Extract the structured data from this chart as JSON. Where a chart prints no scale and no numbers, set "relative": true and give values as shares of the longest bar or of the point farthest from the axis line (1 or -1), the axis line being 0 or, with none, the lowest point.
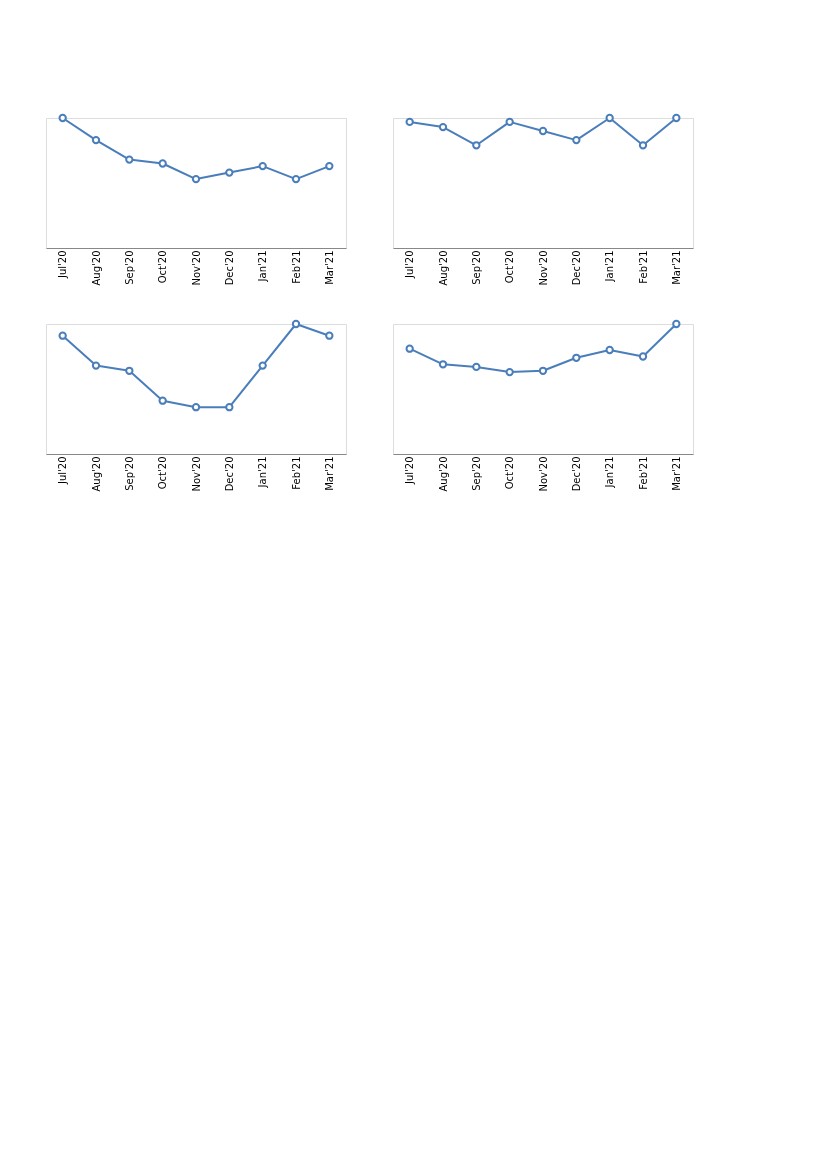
{
  "chart_data": [
    {
      "type": "line",
      "relative": true,
      "marker": "circle",
      "line_style": "solid",
      "grid": false,
      "categories": [
        "Jul'20",
        "Aug'20",
        "Sep'20",
        "Oct'20",
        "Nov'20",
        "Dec'20",
        "Jan'21",
        "Feb'21",
        "Mar'21"
      ],
      "series": [
        {
          "color": "#4a7ebb",
          "values": [
            1,
            0.83,
            0.68,
            0.65,
            0.53,
            0.58,
            0.63,
            0.53,
            0.63
          ]
        }
      ]
    },
    {
      "type": "line",
      "relative": true,
      "marker": "circle",
      "line_style": "solid",
      "grid": false,
      "categories": [
        "Jul'20",
        "Aug'20",
        "Sep'20",
        "Oct'20",
        "Nov'20",
        "Dec'20",
        "Jan'21",
        "Feb'21",
        "Mar'21"
      ],
      "series": [
        {
          "color": "#4a7ebb",
          "values": [
            0.97,
            0.93,
            0.79,
            0.97,
            0.9,
            0.83,
            1,
            0.79,
            1
          ]
        }
      ]
    },
    {
      "type": "line",
      "relative": true,
      "marker": "circle",
      "line_style": "solid",
      "grid": false,
      "categories": [
        "Jul'20",
        "Aug'20",
        "Sep'20",
        "Oct'20",
        "Nov'20",
        "Dec'20",
        "Jan'21",
        "Feb'21",
        "Mar'21"
      ],
      "series": [
        {
          "color": "#4a7ebb",
          "values": [
            0.91,
            0.68,
            0.64,
            0.41,
            0.36,
            0.36,
            0.68,
            1,
            0.91
          ]
        }
      ]
    },
    {
      "type": "line",
      "relative": true,
      "marker": "circle",
      "line_style": "solid",
      "grid": false,
      "categories": [
        "Jul'20",
        "Aug'20",
        "Sep'20",
        "Oct'20",
        "Nov'20",
        "Dec'20",
        "Jan'21",
        "Feb'21",
        "Mar'21"
      ],
      "series": [
        {
          "color": "#4a7ebb",
          "values": [
            0.81,
            0.69,
            0.67,
            0.63,
            0.64,
            0.74,
            0.8,
            0.75,
            1
          ]
        }
      ]
    }
  ]
}
